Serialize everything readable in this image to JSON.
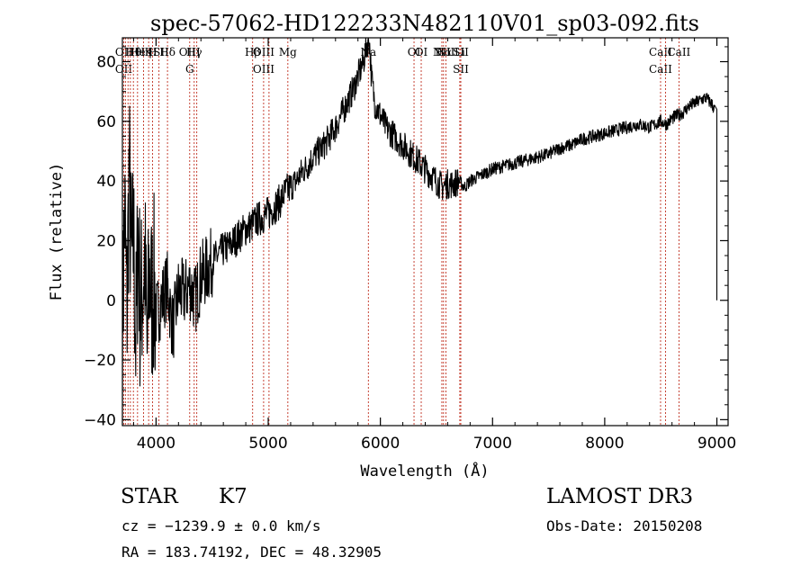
{
  "chart_data": {
    "type": "line",
    "title": "spec-57062-HD122233N482110V01_sp03-092.fits",
    "xlabel": "Wavelength (Å)",
    "ylabel": "Flux (relative)",
    "xlim": [
      3700,
      9100
    ],
    "ylim": [
      -42,
      88
    ],
    "x_ticks": [
      4000,
      5000,
      6000,
      7000,
      8000,
      9000
    ],
    "x_tick_labels": [
      "4000",
      "5000",
      "6000",
      "7000",
      "8000",
      "9000"
    ],
    "y_ticks": [
      -40,
      -20,
      0,
      20,
      40,
      60,
      80
    ],
    "y_tick_labels": [
      "−40",
      "−20",
      "0",
      "20",
      "40",
      "60",
      "80"
    ],
    "grid": false,
    "series": [
      {
        "name": "spectrum",
        "x": [
          3700,
          3720,
          3740,
          3760,
          3780,
          3800,
          3820,
          3840,
          3860,
          3880,
          3900,
          3920,
          3940,
          3960,
          3980,
          4000,
          4050,
          4100,
          4150,
          4200,
          4250,
          4300,
          4350,
          4400,
          4450,
          4500,
          4550,
          4600,
          4650,
          4700,
          4750,
          4800,
          4850,
          4900,
          4950,
          5000,
          5050,
          5100,
          5150,
          5200,
          5250,
          5300,
          5350,
          5400,
          5450,
          5500,
          5550,
          5600,
          5650,
          5700,
          5750,
          5800,
          5850,
          5880,
          5900,
          5920,
          5950,
          6000,
          6050,
          6100,
          6150,
          6200,
          6250,
          6300,
          6350,
          6400,
          6450,
          6500,
          6550,
          6600,
          6650,
          6700,
          6750,
          6800,
          6850,
          6900,
          6950,
          7000,
          7100,
          7200,
          7300,
          7400,
          7500,
          7600,
          7700,
          7800,
          7900,
          8000,
          8100,
          8200,
          8300,
          8400,
          8500,
          8550,
          8600,
          8650,
          8700,
          8750,
          8800,
          8850,
          8900,
          8950,
          8980,
          9000
        ],
        "y": [
          -10,
          30,
          -5,
          45,
          10,
          20,
          -15,
          25,
          -5,
          5,
          15,
          -20,
          10,
          0,
          5,
          -5,
          0,
          5,
          -10,
          3,
          2,
          5,
          0,
          8,
          10,
          13,
          15,
          17,
          18,
          20,
          22,
          24,
          25,
          27,
          28,
          29,
          31,
          33,
          36,
          38,
          40,
          43,
          45,
          48,
          50,
          52,
          55,
          58,
          62,
          66,
          70,
          75,
          80,
          86,
          88,
          75,
          66,
          62,
          58,
          56,
          54,
          52,
          50,
          48,
          46,
          44,
          42,
          40,
          38,
          39,
          39,
          40,
          38,
          40,
          41,
          42,
          43,
          44,
          45,
          46,
          47,
          48,
          49,
          51,
          52,
          54,
          55,
          56,
          57,
          58,
          59,
          58,
          60,
          59,
          61,
          62,
          63,
          65,
          66,
          67,
          68,
          66,
          64,
          0
        ]
      }
    ],
    "line_markers": [
      {
        "wavelength": 3712,
        "labels": [
          "OII",
          "OII"
        ]
      },
      {
        "wavelength": 3727,
        "labels": []
      },
      {
        "wavelength": 3750,
        "labels": []
      },
      {
        "wavelength": 3771,
        "labels": []
      },
      {
        "wavelength": 3798,
        "labels": [
          "Hθ"
        ]
      },
      {
        "wavelength": 3835,
        "labels": [
          "He"
        ]
      },
      {
        "wavelength": 3889,
        "labels": [
          "Hη"
        ]
      },
      {
        "wavelength": 3934,
        "labels": [
          "K"
        ]
      },
      {
        "wavelength": 3969,
        "labels": [
          "H"
        ]
      },
      {
        "wavelength": 4026,
        "labels": [
          "ISII"
        ]
      },
      {
        "wavelength": 4102,
        "labels": [
          "Hδ"
        ]
      },
      {
        "wavelength": 4300,
        "labels": [
          "OIII",
          "G"
        ]
      },
      {
        "wavelength": 4340,
        "labels": [
          "Hγ"
        ]
      },
      {
        "wavelength": 4363,
        "labels": []
      },
      {
        "wavelength": 4861,
        "labels": [
          "Hβ"
        ]
      },
      {
        "wavelength": 4959,
        "labels": [
          "OIII",
          "OIII"
        ]
      },
      {
        "wavelength": 5007,
        "labels": []
      },
      {
        "wavelength": 5175,
        "labels": [
          "Mg"
        ]
      },
      {
        "wavelength": 5893,
        "labels": [
          "Na"
        ]
      },
      {
        "wavelength": 6300,
        "labels": [
          "OI"
        ]
      },
      {
        "wavelength": 6364,
        "labels": [
          "OI"
        ]
      },
      {
        "wavelength": 6548,
        "labels": [
          "NII"
        ]
      },
      {
        "wavelength": 6563,
        "labels": [
          "Hα"
        ]
      },
      {
        "wavelength": 6584,
        "labels": [
          "NII"
        ]
      },
      {
        "wavelength": 6708,
        "labels": [
          "Li"
        ]
      },
      {
        "wavelength": 6717,
        "labels": [
          "SII",
          "SII"
        ]
      },
      {
        "wavelength": 8498,
        "labels": [
          "CaII",
          "CaII"
        ]
      },
      {
        "wavelength": 8542,
        "labels": []
      },
      {
        "wavelength": 8662,
        "labels": [
          "CaII"
        ]
      }
    ]
  },
  "info": {
    "object_class": "STAR",
    "subclass": "K7",
    "survey": "LAMOST DR3",
    "velocity": "cz = −1239.9 ± 0.0 km/s",
    "obs_date": "Obs-Date: 20150208",
    "coords": "RA = 183.74192, DEC =  48.32905"
  }
}
